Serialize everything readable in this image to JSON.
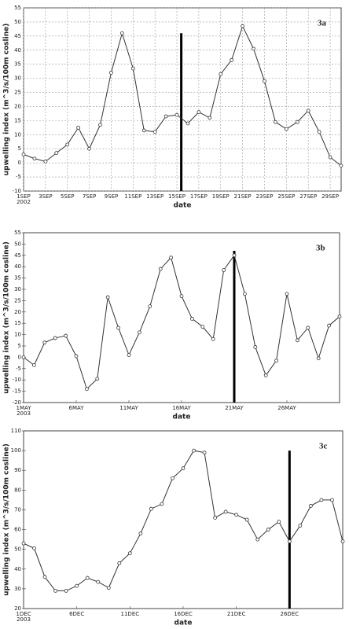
{
  "chart_data": [
    {
      "type": "line",
      "panel_label": "3a",
      "x_label": "date",
      "y_label": "upwelling index (m^3/s/100m cosline)",
      "year": "2002",
      "grid": true,
      "x": [
        1,
        2,
        3,
        4,
        5,
        6,
        7,
        8,
        9,
        10,
        11,
        12,
        13,
        14,
        15,
        16,
        17,
        18,
        19,
        20,
        21,
        22,
        23,
        24,
        25,
        26,
        27,
        28,
        29,
        30
      ],
      "series": [
        {
          "color": "#333333",
          "values": [
            3,
            1.5,
            0.5,
            3.5,
            6.5,
            12.5,
            5,
            13.5,
            32,
            46,
            33.5,
            11.5,
            11,
            16.5,
            17,
            14,
            18,
            16,
            31.5,
            36.5,
            48.5,
            40.5,
            29,
            14.5,
            12,
            14.5,
            18.5,
            11,
            2,
            -1
          ]
        }
      ],
      "xlim": [
        1,
        30
      ],
      "ylim": [
        -10,
        55
      ],
      "xticks": [
        {
          "value": 1,
          "label": "1SEP"
        },
        {
          "value": 3,
          "label": "3SEP"
        },
        {
          "value": 5,
          "label": "5SEP"
        },
        {
          "value": 7,
          "label": "7SEP"
        },
        {
          "value": 9,
          "label": "9SEP"
        },
        {
          "value": 11,
          "label": "11SEP"
        },
        {
          "value": 13,
          "label": "13SEP"
        },
        {
          "value": 15,
          "label": "15SEP"
        },
        {
          "value": 17,
          "label": "17SEP"
        },
        {
          "value": 19,
          "label": "19SEP"
        },
        {
          "value": 21,
          "label": "21SEP"
        },
        {
          "value": 23,
          "label": "23SEP"
        },
        {
          "value": 25,
          "label": "25SEP"
        },
        {
          "value": 27,
          "label": "27SEP"
        },
        {
          "value": 29,
          "label": "29SEP"
        }
      ],
      "yticks": [
        -10,
        -5,
        0,
        5,
        10,
        15,
        20,
        25,
        30,
        35,
        40,
        45,
        50,
        55
      ],
      "event_line": {
        "x": 15.4,
        "y": [
          -10,
          46
        ]
      }
    },
    {
      "type": "line",
      "panel_label": "3b",
      "x_label": "date",
      "y_label": "upwelling index (m^3/s/100m cosline)",
      "year": "2003",
      "grid": false,
      "x": [
        1,
        2,
        3,
        4,
        5,
        6,
        7,
        8,
        9,
        10,
        11,
        12,
        13,
        14,
        15,
        16,
        17,
        18,
        19,
        20,
        21,
        22,
        23,
        24,
        25,
        26,
        27,
        28,
        29,
        30,
        31
      ],
      "series": [
        {
          "color": "#333333",
          "values": [
            0,
            -3.5,
            6.5,
            8.5,
            9.5,
            0.5,
            -14,
            -9.5,
            26.5,
            13,
            1,
            11,
            22.5,
            39,
            44,
            27,
            17,
            13.5,
            8,
            38.5,
            45,
            28,
            4.5,
            -8,
            -1.5,
            28,
            7.5,
            13,
            -0.5,
            14,
            18
          ]
        }
      ],
      "xlim": [
        1,
        31
      ],
      "ylim": [
        -20,
        55
      ],
      "xticks": [
        {
          "value": 1,
          "label": "1MAY"
        },
        {
          "value": 6,
          "label": "6MAY"
        },
        {
          "value": 11,
          "label": "11MAY"
        },
        {
          "value": 16,
          "label": "16MAY"
        },
        {
          "value": 21,
          "label": "21MAY"
        },
        {
          "value": 26,
          "label": "26MAY"
        }
      ],
      "yticks": [
        -20,
        -15,
        -10,
        -5,
        0,
        5,
        10,
        15,
        20,
        25,
        30,
        35,
        40,
        45,
        50,
        55
      ],
      "event_line": {
        "x": 21,
        "y": [
          -20,
          47
        ]
      }
    },
    {
      "type": "line",
      "panel_label": "3c",
      "x_label": "date",
      "y_label": "upwelling index (m^3/s/100m cosline)",
      "year": "2003",
      "grid": false,
      "x": [
        1,
        2,
        3,
        4,
        5,
        6,
        7,
        8,
        9,
        10,
        11,
        12,
        13,
        14,
        15,
        16,
        17,
        18,
        19,
        20,
        21,
        22,
        23,
        24,
        25,
        26,
        27,
        28,
        29,
        30,
        31
      ],
      "series": [
        {
          "color": "#333333",
          "values": [
            53,
            50.5,
            36,
            29,
            29,
            31.5,
            35.5,
            33.5,
            30.5,
            43,
            48,
            58,
            70.5,
            73,
            86,
            91,
            100,
            99,
            66,
            69,
            67.5,
            65,
            55,
            60,
            64,
            54,
            62,
            72,
            75,
            75,
            54
          ]
        }
      ],
      "xlim": [
        1,
        31
      ],
      "ylim": [
        20,
        110
      ],
      "xticks": [
        {
          "value": 1,
          "label": "1DEC"
        },
        {
          "value": 6,
          "label": "6DEC"
        },
        {
          "value": 11,
          "label": "11DEC"
        },
        {
          "value": 16,
          "label": "16DEC"
        },
        {
          "value": 21,
          "label": "21DEC"
        },
        {
          "value": 26,
          "label": "26DEC"
        }
      ],
      "yticks": [
        20,
        30,
        40,
        50,
        60,
        70,
        80,
        90,
        100,
        110
      ],
      "event_line": {
        "x": 26,
        "y": [
          20,
          100
        ]
      }
    }
  ]
}
